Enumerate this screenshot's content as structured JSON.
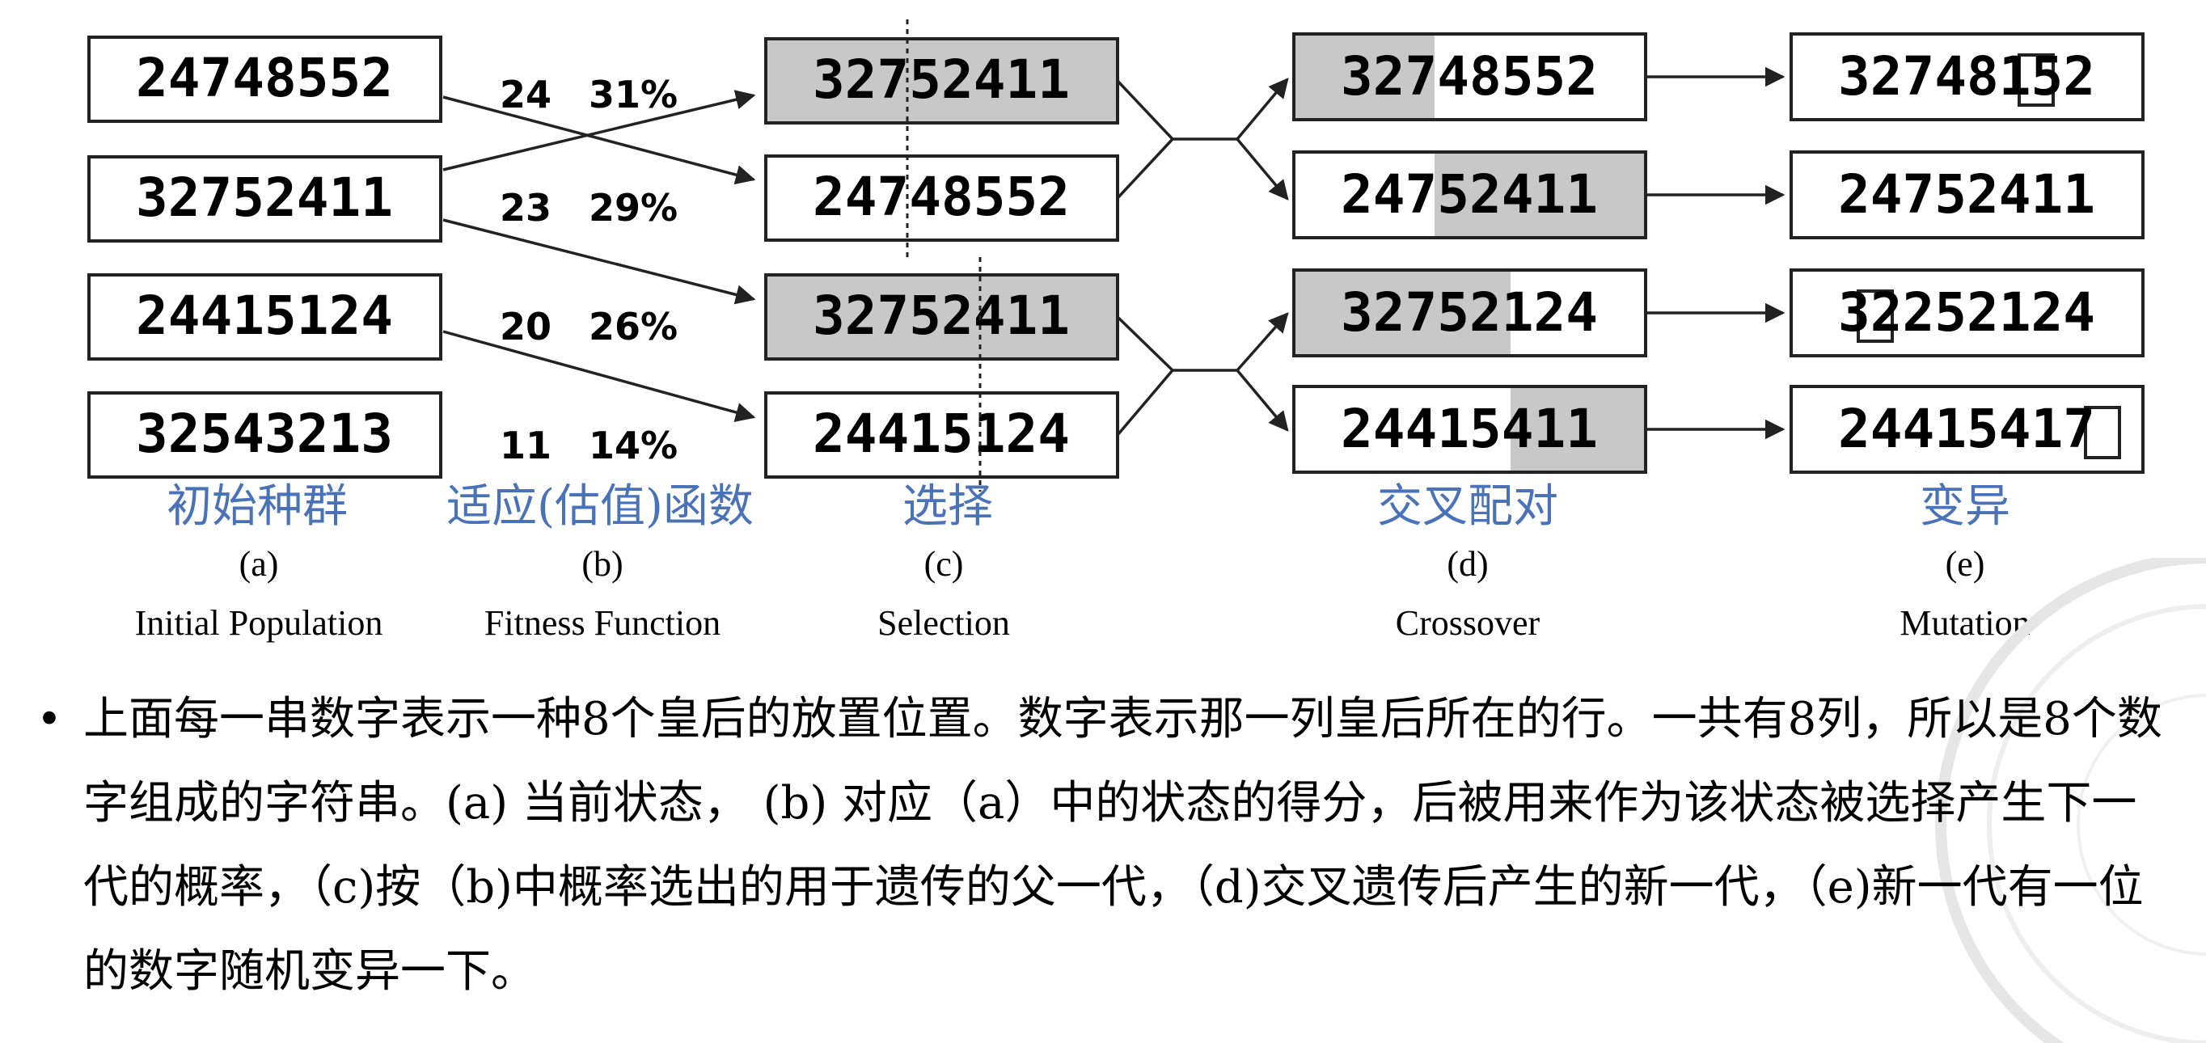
{
  "columns": [
    {
      "id": "a",
      "cn_label": "初始种群",
      "letter": "(a)",
      "en_label": "Initial Population"
    },
    {
      "id": "b",
      "cn_label": "适应(估值)函数",
      "letter": "(b)",
      "en_label": "Fitness Function"
    },
    {
      "id": "c",
      "cn_label": "选择",
      "letter": "(c)",
      "en_label": "Selection"
    },
    {
      "id": "d",
      "cn_label": "交叉配对",
      "letter": "(d)",
      "en_label": "Crossover"
    },
    {
      "id": "e",
      "cn_label": "变异",
      "letter": "(e)",
      "en_label": "Mutation"
    }
  ],
  "initial_population": [
    "24748552",
    "32752411",
    "24415124",
    "32543213"
  ],
  "fitness": [
    {
      "score": "24",
      "percent": "31%"
    },
    {
      "score": "23",
      "percent": "29%"
    },
    {
      "score": "20",
      "percent": "26%"
    },
    {
      "score": "11",
      "percent": "14%"
    }
  ],
  "selection": [
    "32752411",
    "24748552",
    "32752411",
    "24415124"
  ],
  "crossover": [
    "32748552",
    "24752411",
    "32752124",
    "24415411"
  ],
  "mutation": [
    "32748152",
    "24752411",
    "32252124",
    "24415417"
  ],
  "colors": {
    "cn_label": "#4a72b8",
    "shade": "#c8c8c8",
    "box_stroke": "#222222"
  },
  "bullet_text": "上面每一串数字表示一种8个皇后的放置位置。数字表示那一列皇后所在的行。一共有8列，所以是8个数字组成的字符串。(a) 当前状态， (b) 对应（a）中的状态的得分，后被用来作为该状态被选择产生下一代的概率，（c)按（b)中概率选出的用于遗传的父一代，（d)交叉遗传后产生的新一代，（e)新一代有一位的数字随机变异一下。"
}
